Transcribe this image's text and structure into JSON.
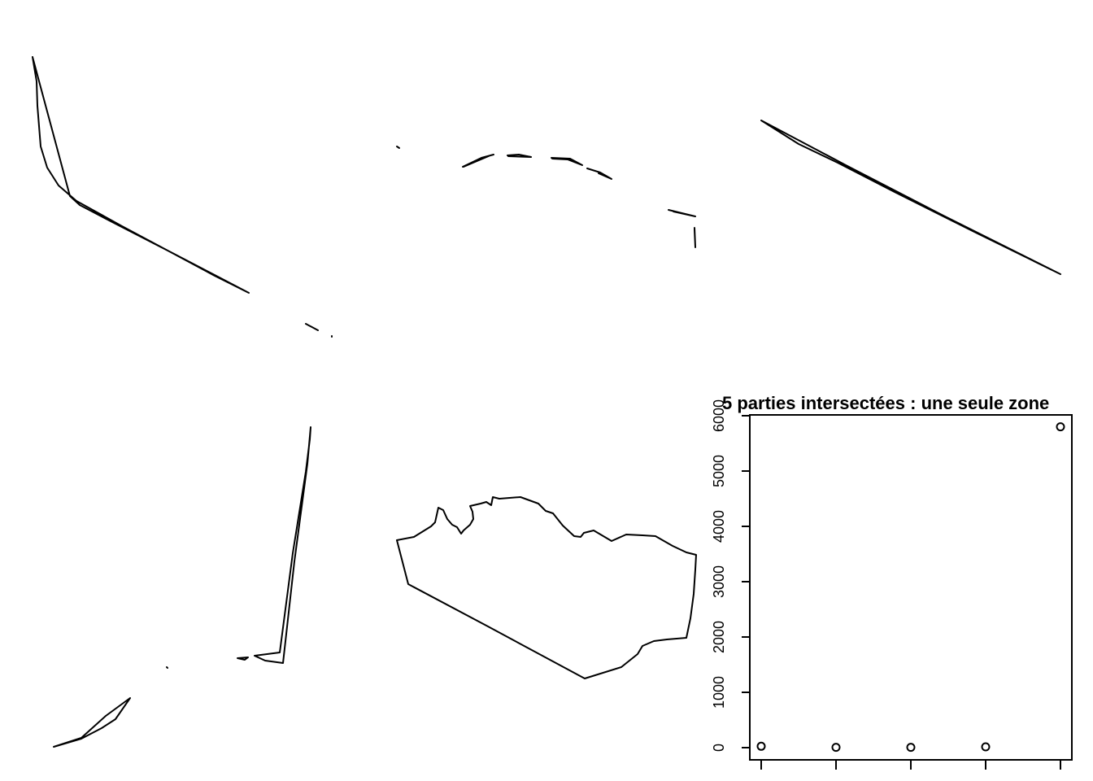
{
  "chart_data": {
    "type": "scatter",
    "title": "5 parties intersectées : une seule zone",
    "xlabel": "",
    "ylabel": "",
    "x": [
      1,
      2,
      3,
      4,
      5
    ],
    "y": [
      25,
      5,
      5,
      15,
      5800
    ],
    "ylim": [
      0,
      6000
    ],
    "xlim": [
      1,
      5
    ],
    "yticks": [
      "0",
      "1000",
      "2000",
      "3000",
      "4000",
      "5000",
      "6000"
    ],
    "grid": false,
    "legend": "none"
  },
  "panels": [
    {
      "label": "shape-panel-1"
    },
    {
      "label": "shape-panel-2"
    },
    {
      "label": "shape-panel-3"
    },
    {
      "label": "shape-panel-4"
    },
    {
      "label": "shape-panel-5"
    }
  ]
}
